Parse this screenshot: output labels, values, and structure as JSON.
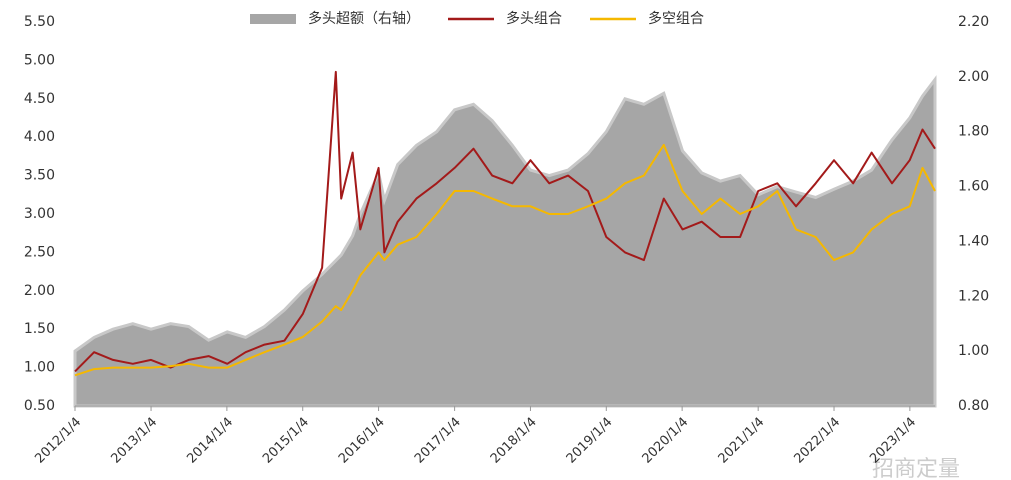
{
  "chart_data": {
    "type": "line",
    "x": [
      "2012/1/4",
      "2012/4/5",
      "2012/7/5",
      "2012/10/8",
      "2013/1/4",
      "2013/4/8",
      "2013/7/4",
      "2013/10/8",
      "2014/1/6",
      "2014/4/4",
      "2014/7/4",
      "2014/10/8",
      "2015/1/5",
      "2015/4/7",
      "2015/6/12",
      "2015/7/8",
      "2015/9/1",
      "2015/10/8",
      "2016/1/4",
      "2016/2/1",
      "2016/4/5",
      "2016/7/4",
      "2016/10/10",
      "2017/1/4",
      "2017/4/5",
      "2017/7/4",
      "2017/10/9",
      "2018/1/4",
      "2018/4/4",
      "2018/7/4",
      "2018/10/8",
      "2019/1/4",
      "2019/4/4",
      "2019/7/4",
      "2019/10/8",
      "2020/1/6",
      "2020/4/7",
      "2020/7/6",
      "2020/10/9",
      "2021/1/4",
      "2021/4/6",
      "2021/7/5",
      "2021/10/8",
      "2022/1/4",
      "2022/4/6",
      "2022/7/4",
      "2022/10/10",
      "2023/1/3",
      "2023/3/6",
      "2023/5/5"
    ],
    "series": [
      {
        "name": "多头超额（右轴）",
        "color": "#a6a6a6",
        "axis": "y2",
        "kind": "area",
        "values": [
          1.0,
          1.05,
          1.08,
          1.1,
          1.08,
          1.1,
          1.09,
          1.04,
          1.07,
          1.05,
          1.09,
          1.15,
          1.22,
          1.28,
          1.33,
          1.35,
          1.42,
          1.5,
          1.65,
          1.55,
          1.68,
          1.75,
          1.8,
          1.88,
          1.9,
          1.84,
          1.75,
          1.66,
          1.64,
          1.66,
          1.72,
          1.8,
          1.92,
          1.9,
          1.94,
          1.73,
          1.65,
          1.62,
          1.64,
          1.57,
          1.6,
          1.58,
          1.56,
          1.59,
          1.62,
          1.66,
          1.77,
          1.85,
          1.93,
          1.99
        ]
      },
      {
        "name": "多头组合",
        "color": "#a31a1a",
        "kind": "line",
        "values": [
          0.95,
          1.2,
          1.1,
          1.05,
          1.1,
          1.0,
          1.1,
          1.15,
          1.05,
          1.2,
          1.3,
          1.35,
          1.7,
          2.3,
          4.85,
          3.2,
          3.8,
          2.8,
          3.6,
          2.5,
          2.9,
          3.2,
          3.4,
          3.6,
          3.85,
          3.5,
          3.4,
          3.7,
          3.4,
          3.5,
          3.3,
          2.7,
          2.5,
          2.4,
          3.2,
          2.8,
          2.9,
          2.7,
          2.7,
          3.3,
          3.4,
          3.1,
          3.4,
          3.7,
          3.4,
          3.8,
          3.4,
          3.7,
          4.1,
          3.85
        ]
      },
      {
        "name": "多空组合",
        "color": "#f5b800",
        "kind": "line",
        "values": [
          0.9,
          0.98,
          1.0,
          1.0,
          1.0,
          1.02,
          1.05,
          1.0,
          1.0,
          1.1,
          1.2,
          1.3,
          1.4,
          1.6,
          1.8,
          1.75,
          2.0,
          2.2,
          2.5,
          2.4,
          2.6,
          2.7,
          3.0,
          3.3,
          3.3,
          3.2,
          3.1,
          3.1,
          3.0,
          3.0,
          3.1,
          3.2,
          3.4,
          3.5,
          3.9,
          3.3,
          3.0,
          3.2,
          3.0,
          3.1,
          3.3,
          2.8,
          2.7,
          2.4,
          2.5,
          2.8,
          3.0,
          3.1,
          3.6,
          3.3
        ]
      }
    ],
    "xlim": [
      "2012/1/4",
      "2023/5/5"
    ],
    "xticks": [
      "2012/1/4",
      "2013/1/4",
      "2014/1/4",
      "2015/1/4",
      "2016/1/4",
      "2017/1/4",
      "2018/1/4",
      "2019/1/4",
      "2020/1/4",
      "2021/1/4",
      "2022/1/4",
      "2023/1/4"
    ],
    "ylim": [
      0.5,
      5.5
    ],
    "yticks": [
      {
        "value": 0.5,
        "label": "0.50"
      },
      {
        "value": 1,
        "label": "1.00"
      },
      {
        "value": 1.5,
        "label": "1.50"
      },
      {
        "value": 2,
        "label": "2.00"
      },
      {
        "value": 2.5,
        "label": "2.50"
      },
      {
        "value": 3,
        "label": "3.00"
      },
      {
        "value": 3.5,
        "label": "3.50"
      },
      {
        "value": 4,
        "label": "4.00"
      },
      {
        "value": 4.5,
        "label": "4.50"
      },
      {
        "value": 5,
        "label": "5.00"
      },
      {
        "value": 5.5,
        "label": "5.50"
      }
    ],
    "y2lim": [
      0.8,
      2.2
    ],
    "y2ticks": [
      {
        "value": 0.8,
        "label": "0.80"
      },
      {
        "value": 1,
        "label": "1.00"
      },
      {
        "value": 1.2,
        "label": "1.20"
      },
      {
        "value": 1.4,
        "label": "1.40"
      },
      {
        "value": 1.6,
        "label": "1.60"
      },
      {
        "value": 1.8,
        "label": "1.80"
      },
      {
        "value": 2,
        "label": "2.00"
      },
      {
        "value": 2.2,
        "label": "2.20"
      }
    ],
    "watermark": "招商定量"
  }
}
